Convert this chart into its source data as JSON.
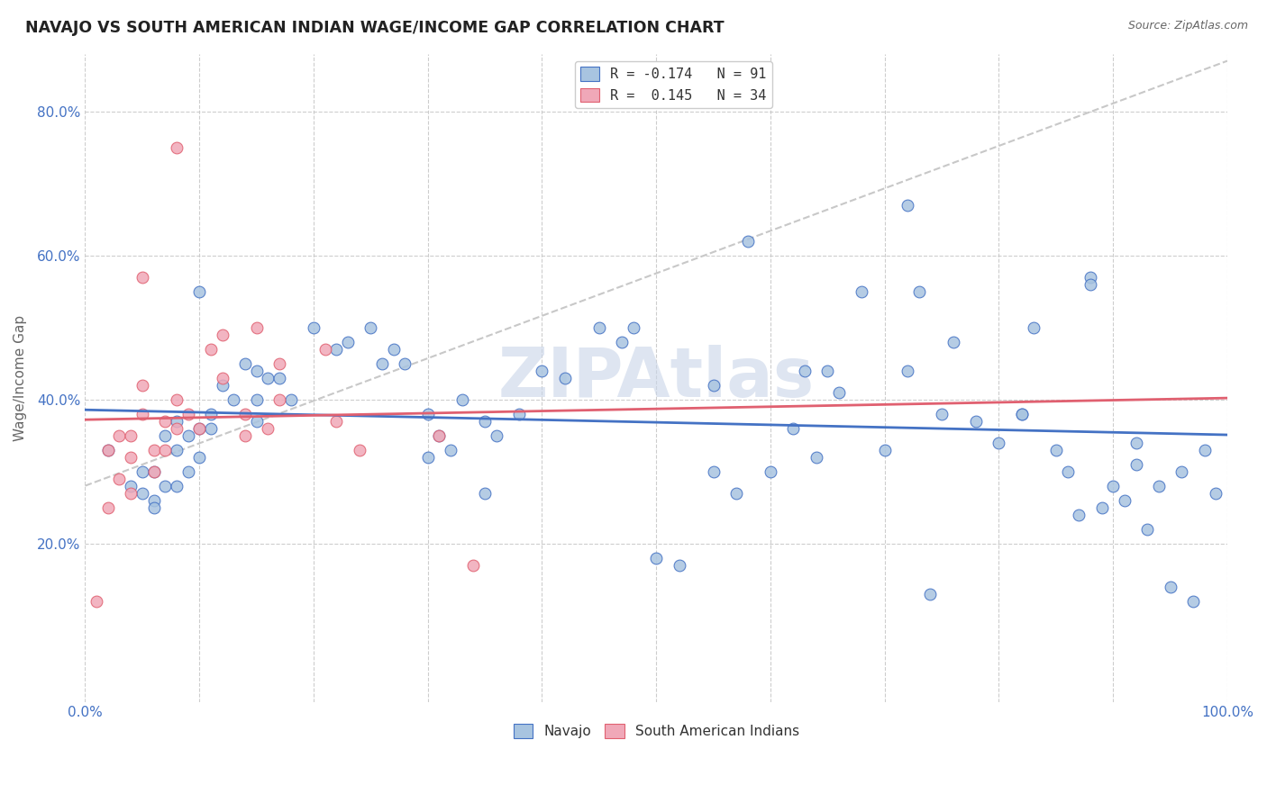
{
  "title": "NAVAJO VS SOUTH AMERICAN INDIAN WAGE/INCOME GAP CORRELATION CHART",
  "source": "Source: ZipAtlas.com",
  "ylabel": "Wage/Income Gap",
  "xlim": [
    0.0,
    1.0
  ],
  "ylim": [
    -0.02,
    0.88
  ],
  "xticks": [
    0.0,
    0.1,
    0.2,
    0.3,
    0.4,
    0.5,
    0.6,
    0.7,
    0.8,
    0.9,
    1.0
  ],
  "xtick_labels": [
    "0.0%",
    "",
    "",
    "",
    "",
    "",
    "",
    "",
    "",
    "",
    "100.0%"
  ],
  "yticks": [
    0.2,
    0.4,
    0.6,
    0.8
  ],
  "ytick_labels": [
    "20.0%",
    "40.0%",
    "60.0%",
    "80.0%"
  ],
  "navajo_R": -0.174,
  "navajo_N": 91,
  "sa_indian_R": 0.145,
  "sa_indian_N": 34,
  "navajo_color": "#a8c4e0",
  "sa_color": "#f0a8b8",
  "navajo_edge_color": "#4472c4",
  "sa_edge_color": "#e06070",
  "navajo_line_color": "#4472c4",
  "sa_line_color": "#e06070",
  "ref_line_color": "#c8c8c8",
  "background_color": "#ffffff",
  "watermark": "ZIPAtlas",
  "watermark_color": "#c8d4e8",
  "navajo_x": [
    0.02,
    0.04,
    0.05,
    0.05,
    0.06,
    0.06,
    0.06,
    0.07,
    0.07,
    0.08,
    0.08,
    0.08,
    0.09,
    0.09,
    0.1,
    0.1,
    0.11,
    0.11,
    0.12,
    0.13,
    0.14,
    0.15,
    0.15,
    0.16,
    0.17,
    0.18,
    0.2,
    0.22,
    0.23,
    0.25,
    0.26,
    0.27,
    0.28,
    0.3,
    0.3,
    0.31,
    0.32,
    0.33,
    0.35,
    0.36,
    0.38,
    0.4,
    0.42,
    0.45,
    0.47,
    0.5,
    0.52,
    0.55,
    0.57,
    0.58,
    0.6,
    0.62,
    0.63,
    0.65,
    0.66,
    0.68,
    0.7,
    0.72,
    0.73,
    0.75,
    0.76,
    0.78,
    0.8,
    0.82,
    0.83,
    0.85,
    0.86,
    0.87,
    0.88,
    0.89,
    0.9,
    0.91,
    0.92,
    0.93,
    0.94,
    0.95,
    0.96,
    0.97,
    0.98,
    0.99,
    0.1,
    0.48,
    0.55,
    0.72,
    0.82,
    0.88,
    0.92,
    0.15,
    0.35,
    0.64,
    0.74
  ],
  "navajo_y": [
    0.33,
    0.28,
    0.3,
    0.27,
    0.3,
    0.26,
    0.25,
    0.35,
    0.28,
    0.37,
    0.33,
    0.28,
    0.35,
    0.3,
    0.36,
    0.32,
    0.38,
    0.36,
    0.42,
    0.4,
    0.45,
    0.44,
    0.4,
    0.43,
    0.43,
    0.4,
    0.5,
    0.47,
    0.48,
    0.5,
    0.45,
    0.47,
    0.45,
    0.38,
    0.32,
    0.35,
    0.33,
    0.4,
    0.37,
    0.35,
    0.38,
    0.44,
    0.43,
    0.5,
    0.48,
    0.18,
    0.17,
    0.3,
    0.27,
    0.62,
    0.3,
    0.36,
    0.44,
    0.44,
    0.41,
    0.55,
    0.33,
    0.44,
    0.55,
    0.38,
    0.48,
    0.37,
    0.34,
    0.38,
    0.5,
    0.33,
    0.3,
    0.24,
    0.57,
    0.25,
    0.28,
    0.26,
    0.34,
    0.22,
    0.28,
    0.14,
    0.3,
    0.12,
    0.33,
    0.27,
    0.55,
    0.5,
    0.42,
    0.67,
    0.38,
    0.56,
    0.31,
    0.37,
    0.27,
    0.32,
    0.13
  ],
  "sa_x": [
    0.01,
    0.02,
    0.02,
    0.03,
    0.03,
    0.04,
    0.04,
    0.04,
    0.05,
    0.05,
    0.05,
    0.06,
    0.06,
    0.07,
    0.07,
    0.08,
    0.08,
    0.09,
    0.1,
    0.11,
    0.12,
    0.12,
    0.14,
    0.14,
    0.15,
    0.16,
    0.17,
    0.17,
    0.21,
    0.22,
    0.24,
    0.31,
    0.34,
    0.08
  ],
  "sa_y": [
    0.12,
    0.33,
    0.25,
    0.35,
    0.29,
    0.35,
    0.32,
    0.27,
    0.57,
    0.42,
    0.38,
    0.33,
    0.3,
    0.37,
    0.33,
    0.4,
    0.36,
    0.38,
    0.36,
    0.47,
    0.49,
    0.43,
    0.35,
    0.38,
    0.5,
    0.36,
    0.45,
    0.4,
    0.47,
    0.37,
    0.33,
    0.35,
    0.17,
    0.75
  ]
}
